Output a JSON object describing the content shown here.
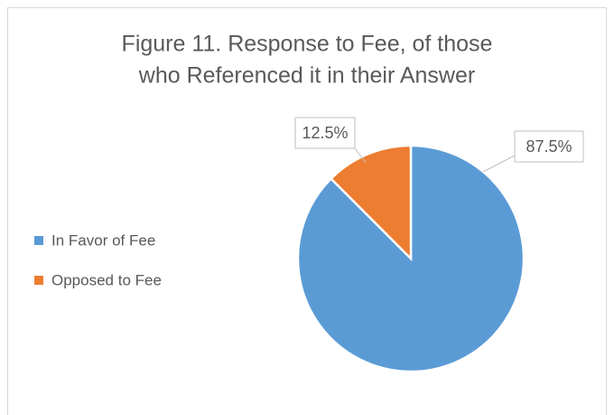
{
  "chart_data": {
    "type": "pie",
    "title": [
      "Figure 11. Response to Fee, of those",
      "who Referenced it in their Answer"
    ],
    "categories": [
      "In Favor of Fee",
      "Opposed to Fee"
    ],
    "values": [
      87.5,
      12.5
    ],
    "value_labels": [
      "87.5%",
      "12.5%"
    ],
    "colors": [
      "#5b9bd5",
      "#ed7d31"
    ],
    "legend": "left"
  }
}
